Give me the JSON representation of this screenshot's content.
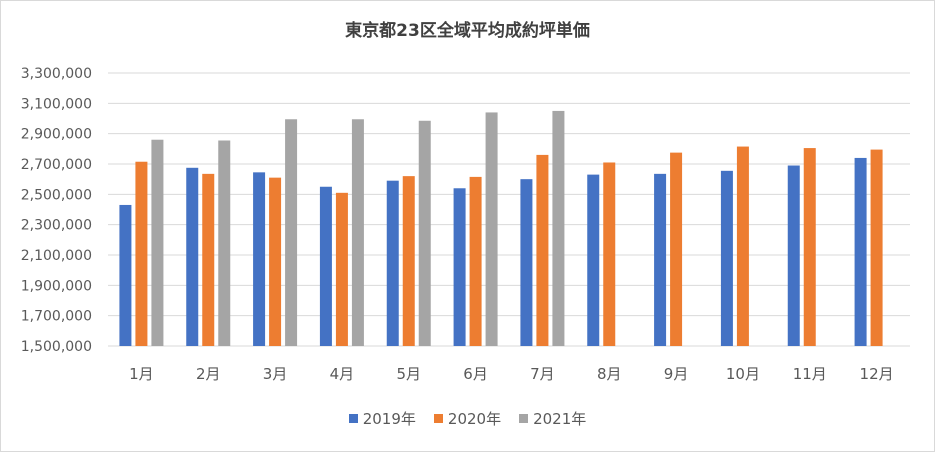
{
  "chart_data": {
    "type": "bar",
    "title": "東京都23区全域平均成約坪単価",
    "xlabel": "",
    "ylabel": "",
    "ylim": [
      1500000,
      3300000
    ],
    "yticks": [
      1500000,
      1700000,
      1900000,
      2100000,
      2300000,
      2500000,
      2700000,
      2900000,
      3100000,
      3300000
    ],
    "ytick_labels": [
      "1,500,000",
      "1,700,000",
      "1,900,000",
      "2,100,000",
      "2,300,000",
      "2,500,000",
      "2,700,000",
      "2,900,000",
      "3,100,000",
      "3,300,000"
    ],
    "categories": [
      "1月",
      "2月",
      "3月",
      "4月",
      "5月",
      "6月",
      "7月",
      "8月",
      "9月",
      "10月",
      "11月",
      "12月"
    ],
    "grid": true,
    "legend_position": "bottom",
    "series": [
      {
        "name": "2019年",
        "color": "#4472c4",
        "values": [
          2430000,
          2675000,
          2645000,
          2550000,
          2590000,
          2540000,
          2600000,
          2630000,
          2635000,
          2655000,
          2690000,
          2740000
        ]
      },
      {
        "name": "2020年",
        "color": "#ed7d31",
        "values": [
          2715000,
          2635000,
          2610000,
          2510000,
          2620000,
          2615000,
          2760000,
          2710000,
          2775000,
          2815000,
          2805000,
          2795000
        ]
      },
      {
        "name": "2021年",
        "color": "#a5a5a5",
        "values": [
          2860000,
          2855000,
          2995000,
          2995000,
          2985000,
          3040000,
          3050000,
          null,
          null,
          null,
          null,
          null
        ]
      }
    ]
  }
}
